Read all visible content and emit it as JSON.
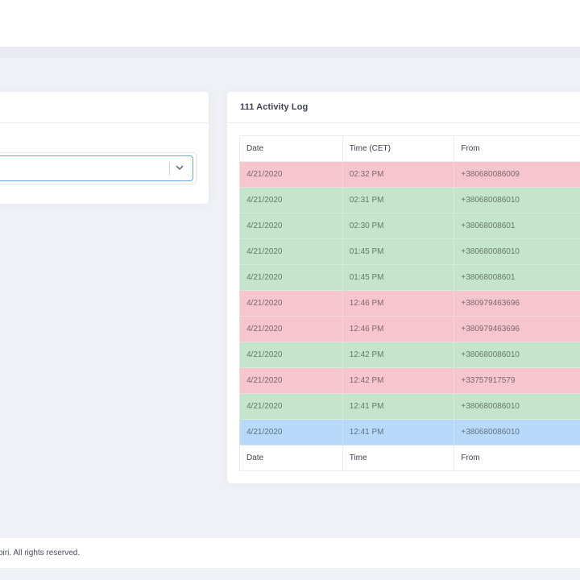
{
  "activity_log": {
    "title": "111 Activity Log",
    "columns": [
      "Date",
      "Time (CET)",
      "From"
    ],
    "footer_columns": [
      "Date",
      "Time",
      "From"
    ],
    "rows": [
      {
        "date": "4/21/2020",
        "time": "02:32 PM",
        "from": "+380680086009",
        "status": "red"
      },
      {
        "date": "4/21/2020",
        "time": "02:31 PM",
        "from": "+380680086010",
        "status": "green"
      },
      {
        "date": "4/21/2020",
        "time": "02:30 PM",
        "from": "+38068008601",
        "status": "green"
      },
      {
        "date": "4/21/2020",
        "time": "01:45 PM",
        "from": "+380680086010",
        "status": "green"
      },
      {
        "date": "4/21/2020",
        "time": "01:45 PM",
        "from": "+38068008601",
        "status": "green"
      },
      {
        "date": "4/21/2020",
        "time": "12:46 PM",
        "from": "+380979463696",
        "status": "red"
      },
      {
        "date": "4/21/2020",
        "time": "12:46 PM",
        "from": "+380979463696",
        "status": "red"
      },
      {
        "date": "4/21/2020",
        "time": "12:42 PM",
        "from": "+380680086010",
        "status": "green"
      },
      {
        "date": "4/21/2020",
        "time": "12:42 PM",
        "from": "+33757917579",
        "status": "red"
      },
      {
        "date": "4/21/2020",
        "time": "12:41 PM",
        "from": "+380680086010",
        "status": "green"
      },
      {
        "date": "4/21/2020",
        "time": "12:41 PM",
        "from": "+380680086010",
        "status": "blue"
      }
    ]
  },
  "select": {
    "icon": "chevron-down-icon"
  },
  "colors": {
    "red_row": "#f6c5ce",
    "green_row": "#c4e5ca",
    "blue_row": "#b9d9fb",
    "select_border": "#69a6e8"
  },
  "footer": {
    "text": "piri. All rights reserved."
  }
}
